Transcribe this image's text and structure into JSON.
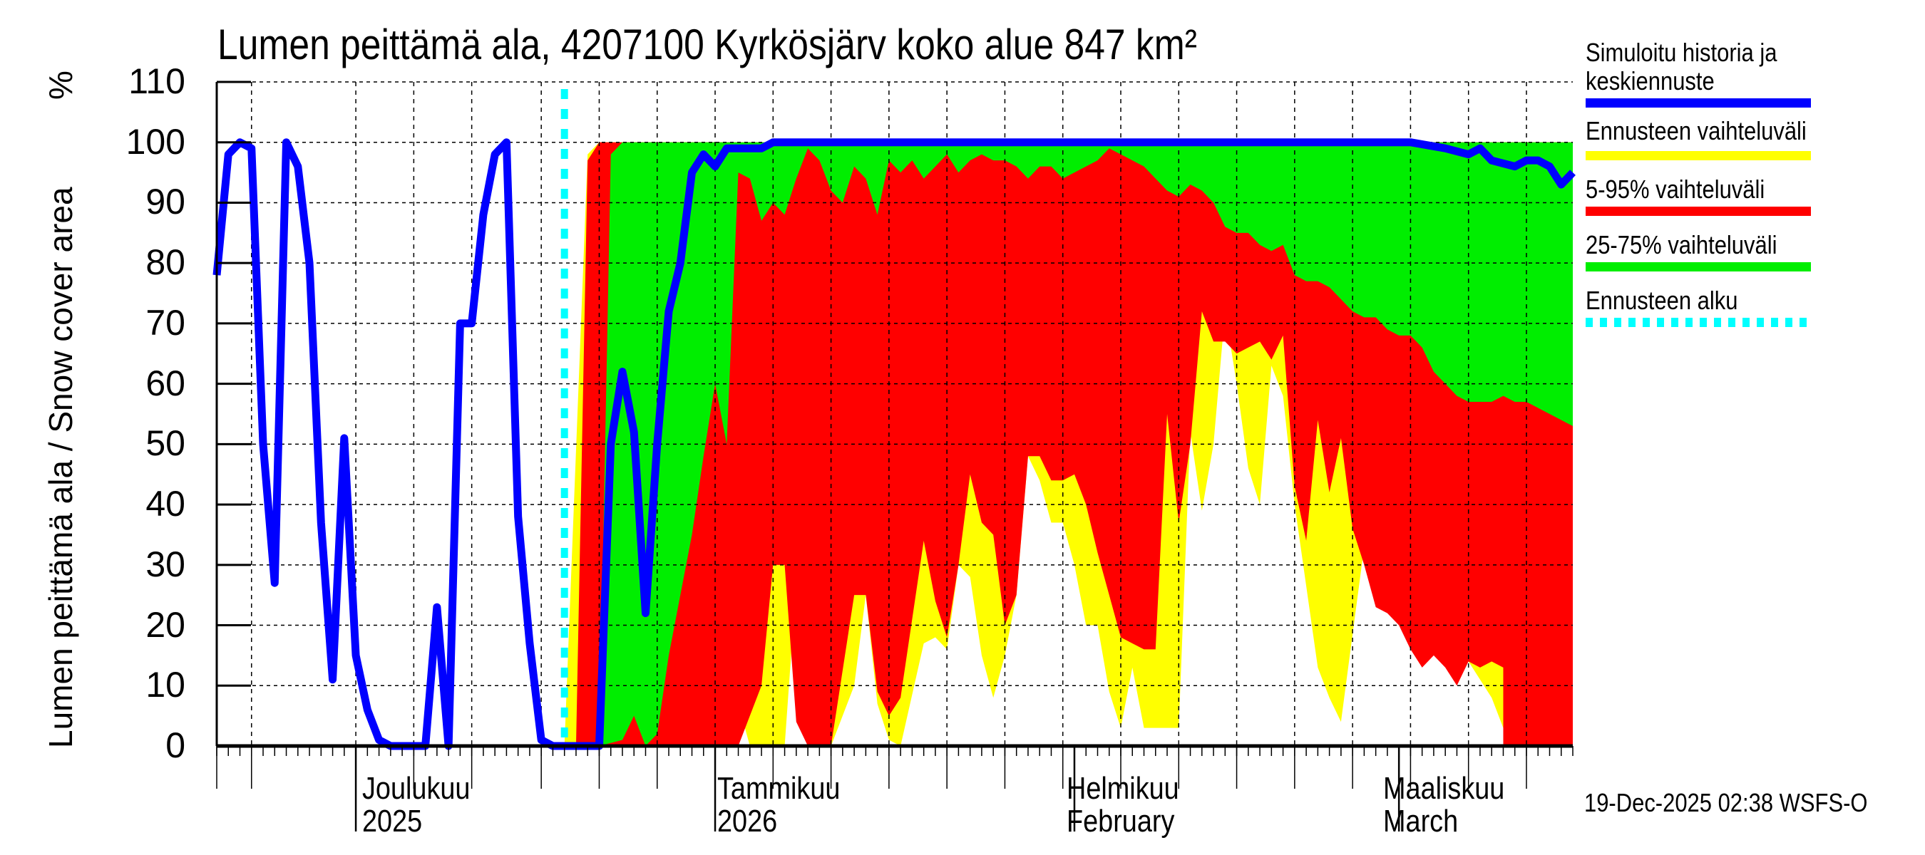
{
  "title": "Lumen peittämä ala, 4207100 Kyrkösjärv koko alue 847 km²",
  "y_axis": {
    "label": "Lumen peittämä ala / Snow cover area",
    "unit": "%",
    "ticks": [
      "0",
      "10",
      "20",
      "30",
      "40",
      "50",
      "60",
      "70",
      "80",
      "90",
      "100",
      "110"
    ]
  },
  "x_axis": {
    "months": [
      {
        "line1": "Joulukuu",
        "line2": "2025"
      },
      {
        "line1": "Tammikuu",
        "line2": "2026"
      },
      {
        "line1": "Helmikuu",
        "line2": "February"
      },
      {
        "line1": "Maaliskuu",
        "line2": "March"
      }
    ]
  },
  "legend": {
    "items": [
      {
        "label": "Simuloitu historia ja",
        "label2": "keskiennuste",
        "color": "#0000ff"
      },
      {
        "label": "Ennusteen vaihteluväli",
        "color": "#ffff00"
      },
      {
        "label": "5-95% vaihteluväli",
        "color": "#ff0000"
      },
      {
        "label": "25-75% vaihteluväli",
        "color": "#00ee00"
      },
      {
        "label": "Ennusteen alku",
        "color": "#00ffff"
      }
    ]
  },
  "footer": {
    "timestamp": "19-Dec-2025 02:38 WSFS-O"
  },
  "chart_data": {
    "type": "area",
    "title": "Lumen peittämä ala, 4207100 Kyrkösjärv koko alue 847 km²",
    "xlabel": "",
    "ylabel": "Lumen peittämä ala / Snow cover area %",
    "ylim": [
      0,
      110
    ],
    "x_range": [
      "2025-11-19",
      "2026-03-18"
    ],
    "forecast_start": "2025-12-19",
    "grid": true,
    "legend_position": "right",
    "x_day_offset_note": "x values are day offsets from 2025-11-19",
    "series": [
      {
        "name": "Simuloitu historia ja keskiennuste",
        "type": "line",
        "color": "#0000ff",
        "points": [
          [
            0,
            78
          ],
          [
            1,
            98
          ],
          [
            2,
            100
          ],
          [
            3,
            99
          ],
          [
            4,
            50
          ],
          [
            5,
            27
          ],
          [
            6,
            100
          ],
          [
            7,
            96
          ],
          [
            8,
            80
          ],
          [
            9,
            37
          ],
          [
            10,
            11
          ],
          [
            11,
            51
          ],
          [
            12,
            15
          ],
          [
            13,
            6
          ],
          [
            14,
            1
          ],
          [
            15,
            0
          ],
          [
            16,
            0
          ],
          [
            18,
            0
          ],
          [
            19,
            23
          ],
          [
            20,
            0
          ],
          [
            21,
            70
          ],
          [
            22,
            70
          ],
          [
            23,
            88
          ],
          [
            24,
            98
          ],
          [
            25,
            100
          ],
          [
            26,
            38
          ],
          [
            27,
            17
          ],
          [
            28,
            1
          ],
          [
            29,
            0
          ],
          [
            31,
            0
          ],
          [
            33,
            0
          ],
          [
            34,
            50
          ],
          [
            35,
            62
          ],
          [
            36,
            52
          ],
          [
            37,
            22
          ],
          [
            38,
            50
          ],
          [
            39,
            72
          ],
          [
            40,
            80
          ],
          [
            41,
            95
          ],
          [
            42,
            98
          ],
          [
            43,
            96
          ],
          [
            44,
            99
          ],
          [
            45,
            99
          ],
          [
            46,
            99
          ],
          [
            47,
            99
          ],
          [
            48,
            100
          ],
          [
            55,
            100
          ],
          [
            70,
            100
          ],
          [
            90,
            100
          ],
          [
            100,
            100
          ],
          [
            103,
            100
          ],
          [
            106,
            99
          ],
          [
            108,
            98
          ],
          [
            109,
            99
          ],
          [
            110,
            97
          ],
          [
            112,
            96
          ],
          [
            113,
            97
          ],
          [
            114,
            97
          ],
          [
            115,
            96
          ],
          [
            116,
            93
          ],
          [
            117,
            95
          ]
        ]
      },
      {
        "name": "Ennusteen vaihteluväli (max)",
        "type": "band_upper",
        "color": "#ffff00",
        "points": [
          [
            30,
            0
          ],
          [
            32,
            98
          ],
          [
            33,
            100
          ],
          [
            117,
            100
          ]
        ]
      },
      {
        "name": "Ennusteen vaihteluväli (min)",
        "type": "band_lower",
        "color": "#ffff00",
        "points": [
          [
            30,
            0
          ],
          [
            44,
            0
          ],
          [
            45,
            7
          ],
          [
            46,
            0
          ],
          [
            49,
            0
          ],
          [
            50,
            27
          ],
          [
            51,
            0
          ],
          [
            53,
            0
          ],
          [
            55,
            10
          ],
          [
            56,
            25
          ],
          [
            57,
            7
          ],
          [
            58,
            1
          ],
          [
            59,
            0
          ],
          [
            61,
            17
          ],
          [
            62,
            18
          ],
          [
            63,
            16
          ],
          [
            64,
            30
          ],
          [
            65,
            28
          ],
          [
            66,
            15
          ],
          [
            67,
            8
          ],
          [
            68,
            15
          ],
          [
            69,
            25
          ],
          [
            70,
            48
          ],
          [
            71,
            44
          ],
          [
            72,
            37
          ],
          [
            73,
            37
          ],
          [
            74,
            30
          ],
          [
            75,
            20
          ],
          [
            76,
            20
          ],
          [
            77,
            9
          ],
          [
            78,
            3
          ],
          [
            79,
            13
          ],
          [
            80,
            3
          ],
          [
            82,
            3
          ],
          [
            83,
            3
          ],
          [
            84,
            52
          ],
          [
            85,
            39
          ],
          [
            86,
            50
          ],
          [
            87,
            72
          ],
          [
            88,
            60
          ],
          [
            89,
            46
          ],
          [
            90,
            40
          ],
          [
            91,
            63
          ],
          [
            92,
            58
          ],
          [
            93,
            40
          ],
          [
            95,
            13
          ],
          [
            96,
            8
          ],
          [
            97,
            4
          ],
          [
            99,
            33
          ],
          [
            100,
            41
          ],
          [
            101,
            50
          ],
          [
            102,
            40
          ],
          [
            103,
            40
          ],
          [
            104,
            33
          ],
          [
            105,
            26
          ],
          [
            106,
            20
          ],
          [
            108,
            14
          ],
          [
            110,
            8
          ],
          [
            111,
            3
          ],
          [
            112,
            3
          ],
          [
            113,
            9
          ],
          [
            114,
            8
          ],
          [
            115,
            5
          ],
          [
            116,
            2
          ],
          [
            117,
            1
          ]
        ]
      },
      {
        "name": "5-95% vaihteluväli (upper)",
        "type": "band_upper",
        "color": "#ff0000",
        "points": [
          [
            31,
            0
          ],
          [
            32,
            97
          ],
          [
            33,
            100
          ],
          [
            117,
            100
          ]
        ]
      },
      {
        "name": "5-95% vaihteluväli (lower)",
        "type": "band_lower",
        "color": "#ff0000",
        "points": [
          [
            31,
            0
          ],
          [
            45,
            0
          ],
          [
            47,
            10
          ],
          [
            48,
            30
          ],
          [
            49,
            30
          ],
          [
            50,
            4
          ],
          [
            51,
            0
          ],
          [
            53,
            0
          ],
          [
            55,
            25
          ],
          [
            56,
            25
          ],
          [
            57,
            9
          ],
          [
            58,
            5
          ],
          [
            59,
            8
          ],
          [
            61,
            34
          ],
          [
            62,
            24
          ],
          [
            63,
            18
          ],
          [
            64,
            30
          ],
          [
            65,
            45
          ],
          [
            66,
            37
          ],
          [
            67,
            35
          ],
          [
            68,
            20
          ],
          [
            69,
            25
          ],
          [
            70,
            48
          ],
          [
            71,
            48
          ],
          [
            72,
            44
          ],
          [
            73,
            44
          ],
          [
            74,
            45
          ],
          [
            75,
            40
          ],
          [
            76,
            32
          ],
          [
            77,
            25
          ],
          [
            78,
            18
          ],
          [
            79,
            17
          ],
          [
            80,
            16
          ],
          [
            81,
            16
          ],
          [
            82,
            55
          ],
          [
            83,
            37
          ],
          [
            84,
            50
          ],
          [
            85,
            72
          ],
          [
            86,
            67
          ],
          [
            87,
            67
          ],
          [
            88,
            65
          ],
          [
            89,
            66
          ],
          [
            90,
            67
          ],
          [
            91,
            64
          ],
          [
            92,
            68
          ],
          [
            93,
            43
          ],
          [
            94,
            34
          ],
          [
            95,
            54
          ],
          [
            96,
            42
          ],
          [
            97,
            51
          ],
          [
            98,
            36
          ],
          [
            99,
            30
          ],
          [
            100,
            23
          ],
          [
            101,
            22
          ],
          [
            102,
            20
          ],
          [
            103,
            16
          ],
          [
            104,
            13
          ],
          [
            105,
            15
          ],
          [
            106,
            13
          ],
          [
            107,
            10
          ],
          [
            108,
            14
          ],
          [
            109,
            13
          ],
          [
            110,
            14
          ],
          [
            111,
            13
          ]
        ]
      },
      {
        "name": "25-75% vaihteluväli (upper)",
        "type": "band_upper",
        "color": "#00ee00",
        "points": [
          [
            33,
            0
          ],
          [
            34,
            98
          ],
          [
            35,
            100
          ],
          [
            117,
            100
          ]
        ]
      },
      {
        "name": "25-75% vaihteluväli (lower)",
        "type": "band_lower",
        "color": "#00ee00",
        "points": [
          [
            33,
            0
          ],
          [
            35,
            1
          ],
          [
            36,
            5
          ],
          [
            37,
            0
          ],
          [
            38,
            2
          ],
          [
            39,
            15
          ],
          [
            40,
            25
          ],
          [
            41,
            35
          ],
          [
            42,
            48
          ],
          [
            43,
            60
          ],
          [
            44,
            50
          ],
          [
            45,
            95
          ],
          [
            46,
            94
          ],
          [
            47,
            87
          ],
          [
            48,
            90
          ],
          [
            49,
            88
          ],
          [
            50,
            94
          ],
          [
            51,
            99
          ],
          [
            52,
            97
          ],
          [
            53,
            92
          ],
          [
            54,
            90
          ],
          [
            55,
            96
          ],
          [
            56,
            94
          ],
          [
            57,
            88
          ],
          [
            58,
            97
          ],
          [
            59,
            95
          ],
          [
            60,
            97
          ],
          [
            61,
            94
          ],
          [
            62,
            96
          ],
          [
            63,
            98
          ],
          [
            64,
            95
          ],
          [
            65,
            97
          ],
          [
            66,
            98
          ],
          [
            67,
            97
          ],
          [
            68,
            97
          ],
          [
            69,
            96
          ],
          [
            70,
            94
          ],
          [
            71,
            96
          ],
          [
            72,
            96
          ],
          [
            73,
            94
          ],
          [
            74,
            95
          ],
          [
            75,
            96
          ],
          [
            76,
            97
          ],
          [
            77,
            99
          ],
          [
            78,
            98
          ],
          [
            79,
            97
          ],
          [
            80,
            96
          ],
          [
            81,
            94
          ],
          [
            82,
            92
          ],
          [
            83,
            91
          ],
          [
            84,
            93
          ],
          [
            85,
            92
          ],
          [
            86,
            90
          ],
          [
            87,
            86
          ],
          [
            88,
            85
          ],
          [
            89,
            85
          ],
          [
            90,
            83
          ],
          [
            91,
            82
          ],
          [
            92,
            83
          ],
          [
            93,
            78
          ],
          [
            94,
            77
          ],
          [
            95,
            77
          ],
          [
            96,
            76
          ],
          [
            97,
            74
          ],
          [
            98,
            72
          ],
          [
            99,
            71
          ],
          [
            100,
            71
          ],
          [
            101,
            69
          ],
          [
            102,
            68
          ],
          [
            103,
            68
          ],
          [
            104,
            66
          ],
          [
            105,
            62
          ],
          [
            106,
            60
          ],
          [
            107,
            58
          ],
          [
            108,
            57
          ],
          [
            109,
            57
          ],
          [
            110,
            57
          ],
          [
            111,
            58
          ],
          [
            112,
            57
          ],
          [
            113,
            57
          ],
          [
            114,
            56
          ],
          [
            115,
            55
          ],
          [
            116,
            54
          ],
          [
            117,
            53
          ]
        ]
      }
    ]
  }
}
